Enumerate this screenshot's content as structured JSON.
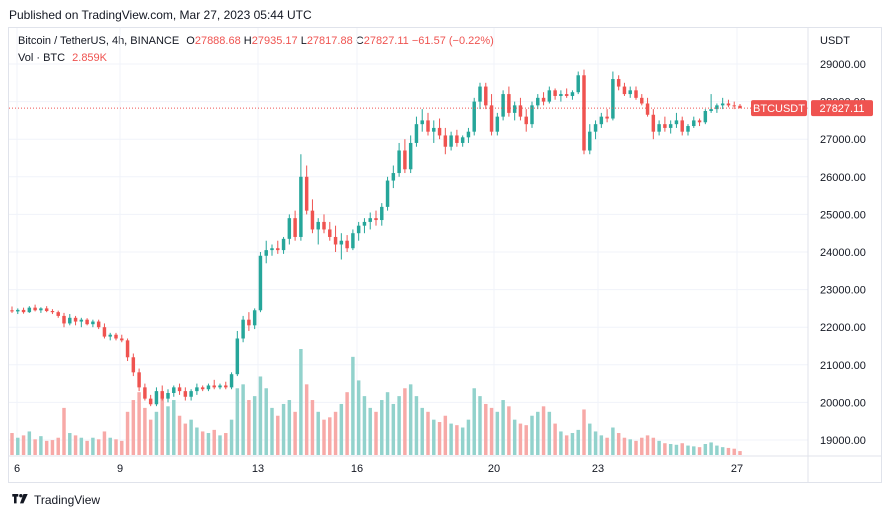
{
  "header": {
    "published": "Published on TradingView.com, Mar 27, 2023 05:44 UTC"
  },
  "legend": {
    "symbol": "Bitcoin / TetherUS, 4h, BINANCE",
    "o_label": "O",
    "o": "27888.68",
    "h_label": "H",
    "h": "27935.17",
    "l_label": "L",
    "l": "27817.88",
    "c_label": "C",
    "c": "27827.11",
    "change": "−61.57 (−0.22%)",
    "vol_label": "Vol · BTC",
    "vol": "2.859K"
  },
  "price_axis": {
    "currency": "USDT",
    "ticker": "BTCUSDT",
    "last_price": "27827.11",
    "ticks": [
      "29000.00",
      "28000.00",
      "27000.00",
      "26000.00",
      "25000.00",
      "24000.00",
      "23000.00",
      "22000.00",
      "21000.00",
      "20000.00",
      "19000.00"
    ]
  },
  "footer": {
    "brand": "TradingView",
    "logo_icon": "tradingview-logo-icon"
  },
  "colors": {
    "up": "#26a69a",
    "down": "#ef5350",
    "up_vol": "#92d2cc",
    "down_vol": "#f7a9a7",
    "grid": "#f0f3fa"
  },
  "chart_data": {
    "type": "candlestick",
    "interval": "4h",
    "x_ticks": [
      "6",
      "9",
      "13",
      "16",
      "20",
      "23",
      "27"
    ],
    "ylim": [
      18700,
      29300
    ],
    "grid": true,
    "last_price": 27827.11,
    "volume_scale_note": "relative",
    "candles": [
      {
        "o": 22450,
        "h": 22550,
        "l": 22380,
        "c": 22420,
        "v": 0.28
      },
      {
        "o": 22420,
        "h": 22500,
        "l": 22350,
        "c": 22460,
        "v": 0.22
      },
      {
        "o": 22460,
        "h": 22520,
        "l": 22360,
        "c": 22400,
        "v": 0.25
      },
      {
        "o": 22400,
        "h": 22560,
        "l": 22380,
        "c": 22520,
        "v": 0.3
      },
      {
        "o": 22520,
        "h": 22600,
        "l": 22420,
        "c": 22450,
        "v": 0.2
      },
      {
        "o": 22450,
        "h": 22530,
        "l": 22380,
        "c": 22500,
        "v": 0.24
      },
      {
        "o": 22500,
        "h": 22560,
        "l": 22400,
        "c": 22430,
        "v": 0.18
      },
      {
        "o": 22430,
        "h": 22480,
        "l": 22350,
        "c": 22400,
        "v": 0.19
      },
      {
        "o": 22400,
        "h": 22440,
        "l": 22250,
        "c": 22300,
        "v": 0.22
      },
      {
        "o": 22300,
        "h": 22380,
        "l": 22000,
        "c": 22100,
        "v": 0.6
      },
      {
        "o": 22100,
        "h": 22350,
        "l": 22050,
        "c": 22250,
        "v": 0.28
      },
      {
        "o": 22250,
        "h": 22300,
        "l": 22050,
        "c": 22150,
        "v": 0.25
      },
      {
        "o": 22150,
        "h": 22250,
        "l": 22000,
        "c": 22200,
        "v": 0.22
      },
      {
        "o": 22200,
        "h": 22240,
        "l": 22050,
        "c": 22080,
        "v": 0.18
      },
      {
        "o": 22080,
        "h": 22200,
        "l": 22000,
        "c": 22150,
        "v": 0.22
      },
      {
        "o": 22150,
        "h": 22200,
        "l": 21950,
        "c": 22000,
        "v": 0.2
      },
      {
        "o": 22000,
        "h": 22100,
        "l": 21700,
        "c": 21750,
        "v": 0.3
      },
      {
        "o": 21750,
        "h": 21850,
        "l": 21650,
        "c": 21800,
        "v": 0.22
      },
      {
        "o": 21800,
        "h": 21850,
        "l": 21650,
        "c": 21700,
        "v": 0.2
      },
      {
        "o": 21700,
        "h": 21800,
        "l": 21600,
        "c": 21650,
        "v": 0.18
      },
      {
        "o": 21650,
        "h": 21700,
        "l": 21100,
        "c": 21200,
        "v": 0.55
      },
      {
        "o": 21200,
        "h": 21300,
        "l": 20700,
        "c": 20800,
        "v": 0.7
      },
      {
        "o": 20800,
        "h": 20900,
        "l": 20300,
        "c": 20400,
        "v": 0.8
      },
      {
        "o": 20400,
        "h": 20500,
        "l": 20050,
        "c": 20100,
        "v": 0.6
      },
      {
        "o": 20100,
        "h": 20200,
        "l": 19900,
        "c": 19950,
        "v": 0.45
      },
      {
        "o": 19950,
        "h": 20400,
        "l": 19900,
        "c": 20300,
        "v": 0.55
      },
      {
        "o": 20300,
        "h": 20450,
        "l": 20050,
        "c": 20100,
        "v": 0.75
      },
      {
        "o": 20100,
        "h": 20350,
        "l": 20000,
        "c": 20250,
        "v": 0.62
      },
      {
        "o": 20250,
        "h": 20450,
        "l": 20150,
        "c": 20400,
        "v": 0.7
      },
      {
        "o": 20400,
        "h": 20500,
        "l": 20200,
        "c": 20300,
        "v": 0.5
      },
      {
        "o": 20300,
        "h": 20400,
        "l": 20050,
        "c": 20150,
        "v": 0.4
      },
      {
        "o": 20150,
        "h": 20350,
        "l": 20050,
        "c": 20300,
        "v": 0.45
      },
      {
        "o": 20300,
        "h": 20500,
        "l": 20200,
        "c": 20400,
        "v": 0.35
      },
      {
        "o": 20400,
        "h": 20450,
        "l": 20300,
        "c": 20350,
        "v": 0.3
      },
      {
        "o": 20350,
        "h": 20500,
        "l": 20300,
        "c": 20450,
        "v": 0.28
      },
      {
        "o": 20450,
        "h": 20600,
        "l": 20350,
        "c": 20400,
        "v": 0.32
      },
      {
        "o": 20400,
        "h": 20500,
        "l": 20350,
        "c": 20450,
        "v": 0.25
      },
      {
        "o": 20450,
        "h": 20550,
        "l": 20350,
        "c": 20400,
        "v": 0.28
      },
      {
        "o": 20400,
        "h": 20800,
        "l": 20350,
        "c": 20750,
        "v": 0.45
      },
      {
        "o": 20750,
        "h": 21900,
        "l": 20700,
        "c": 21700,
        "v": 0.85
      },
      {
        "o": 21700,
        "h": 22300,
        "l": 21600,
        "c": 22200,
        "v": 0.9
      },
      {
        "o": 22200,
        "h": 22400,
        "l": 21900,
        "c": 22050,
        "v": 0.7
      },
      {
        "o": 22050,
        "h": 22500,
        "l": 21950,
        "c": 22450,
        "v": 0.75
      },
      {
        "o": 22450,
        "h": 24000,
        "l": 22400,
        "c": 23900,
        "v": 1.0
      },
      {
        "o": 23900,
        "h": 24300,
        "l": 23700,
        "c": 24050,
        "v": 0.85
      },
      {
        "o": 24050,
        "h": 24200,
        "l": 23900,
        "c": 24100,
        "v": 0.6
      },
      {
        "o": 24100,
        "h": 24300,
        "l": 23950,
        "c": 24050,
        "v": 0.5
      },
      {
        "o": 24050,
        "h": 24400,
        "l": 23950,
        "c": 24350,
        "v": 0.65
      },
      {
        "o": 24350,
        "h": 25000,
        "l": 24200,
        "c": 24900,
        "v": 0.7
      },
      {
        "o": 24900,
        "h": 25100,
        "l": 24300,
        "c": 24400,
        "v": 0.55
      },
      {
        "o": 24400,
        "h": 26600,
        "l": 24300,
        "c": 26000,
        "v": 1.35
      },
      {
        "o": 26000,
        "h": 26300,
        "l": 25000,
        "c": 25100,
        "v": 0.9
      },
      {
        "o": 25100,
        "h": 25400,
        "l": 24500,
        "c": 24600,
        "v": 0.7
      },
      {
        "o": 24600,
        "h": 24900,
        "l": 24200,
        "c": 24800,
        "v": 0.55
      },
      {
        "o": 24800,
        "h": 25000,
        "l": 24500,
        "c": 24600,
        "v": 0.45
      },
      {
        "o": 24600,
        "h": 24800,
        "l": 24300,
        "c": 24400,
        "v": 0.48
      },
      {
        "o": 24400,
        "h": 24700,
        "l": 24000,
        "c": 24200,
        "v": 0.55
      },
      {
        "o": 24200,
        "h": 24500,
        "l": 23800,
        "c": 24300,
        "v": 0.65
      },
      {
        "o": 24300,
        "h": 24450,
        "l": 24000,
        "c": 24100,
        "v": 0.8
      },
      {
        "o": 24100,
        "h": 24600,
        "l": 24050,
        "c": 24500,
        "v": 1.25
      },
      {
        "o": 24500,
        "h": 24800,
        "l": 24300,
        "c": 24700,
        "v": 0.95
      },
      {
        "o": 24700,
        "h": 24900,
        "l": 24500,
        "c": 24800,
        "v": 0.75
      },
      {
        "o": 24800,
        "h": 25050,
        "l": 24600,
        "c": 24900,
        "v": 0.6
      },
      {
        "o": 24900,
        "h": 25100,
        "l": 24700,
        "c": 24850,
        "v": 0.55
      },
      {
        "o": 24850,
        "h": 25300,
        "l": 24700,
        "c": 25200,
        "v": 0.7
      },
      {
        "o": 25200,
        "h": 26000,
        "l": 25100,
        "c": 25900,
        "v": 0.8
      },
      {
        "o": 25900,
        "h": 26300,
        "l": 25700,
        "c": 26100,
        "v": 0.65
      },
      {
        "o": 26100,
        "h": 26900,
        "l": 26000,
        "c": 26700,
        "v": 0.75
      },
      {
        "o": 26700,
        "h": 27000,
        "l": 26100,
        "c": 26200,
        "v": 0.85
      },
      {
        "o": 26200,
        "h": 27100,
        "l": 26100,
        "c": 26900,
        "v": 0.9
      },
      {
        "o": 26900,
        "h": 27600,
        "l": 26800,
        "c": 27400,
        "v": 0.75
      },
      {
        "o": 27400,
        "h": 27800,
        "l": 27200,
        "c": 27500,
        "v": 0.6
      },
      {
        "o": 27500,
        "h": 27700,
        "l": 27100,
        "c": 27200,
        "v": 0.55
      },
      {
        "o": 27200,
        "h": 27500,
        "l": 26900,
        "c": 27300,
        "v": 0.45
      },
      {
        "o": 27300,
        "h": 27550,
        "l": 27000,
        "c": 27100,
        "v": 0.42
      },
      {
        "o": 27100,
        "h": 27300,
        "l": 26600,
        "c": 26800,
        "v": 0.5
      },
      {
        "o": 26800,
        "h": 27200,
        "l": 26700,
        "c": 27100,
        "v": 0.4
      },
      {
        "o": 27100,
        "h": 27250,
        "l": 26800,
        "c": 26900,
        "v": 0.38
      },
      {
        "o": 26900,
        "h": 27100,
        "l": 26800,
        "c": 27050,
        "v": 0.35
      },
      {
        "o": 27050,
        "h": 27300,
        "l": 26900,
        "c": 27200,
        "v": 0.45
      },
      {
        "o": 27200,
        "h": 28100,
        "l": 27100,
        "c": 28000,
        "v": 0.85
      },
      {
        "o": 28000,
        "h": 28500,
        "l": 27800,
        "c": 28400,
        "v": 0.75
      },
      {
        "o": 28400,
        "h": 28500,
        "l": 27800,
        "c": 27900,
        "v": 0.65
      },
      {
        "o": 27900,
        "h": 28200,
        "l": 27100,
        "c": 27200,
        "v": 0.6
      },
      {
        "o": 27200,
        "h": 27700,
        "l": 27100,
        "c": 27600,
        "v": 0.55
      },
      {
        "o": 27600,
        "h": 28300,
        "l": 27500,
        "c": 28200,
        "v": 0.7
      },
      {
        "o": 28200,
        "h": 28400,
        "l": 27600,
        "c": 27700,
        "v": 0.62
      },
      {
        "o": 27700,
        "h": 28000,
        "l": 27500,
        "c": 27900,
        "v": 0.45
      },
      {
        "o": 27900,
        "h": 28100,
        "l": 27500,
        "c": 27600,
        "v": 0.4
      },
      {
        "o": 27600,
        "h": 27800,
        "l": 27200,
        "c": 27400,
        "v": 0.38
      },
      {
        "o": 27400,
        "h": 28000,
        "l": 27300,
        "c": 27900,
        "v": 0.5
      },
      {
        "o": 27900,
        "h": 28200,
        "l": 27800,
        "c": 28100,
        "v": 0.55
      },
      {
        "o": 28100,
        "h": 28250,
        "l": 27900,
        "c": 28000,
        "v": 0.62
      },
      {
        "o": 28000,
        "h": 28400,
        "l": 27950,
        "c": 28300,
        "v": 0.55
      },
      {
        "o": 28300,
        "h": 28350,
        "l": 28050,
        "c": 28150,
        "v": 0.4
      },
      {
        "o": 28150,
        "h": 28300,
        "l": 28000,
        "c": 28200,
        "v": 0.3
      },
      {
        "o": 28200,
        "h": 28350,
        "l": 28100,
        "c": 28150,
        "v": 0.25
      },
      {
        "o": 28150,
        "h": 28300,
        "l": 28050,
        "c": 28250,
        "v": 0.28
      },
      {
        "o": 28250,
        "h": 28800,
        "l": 28200,
        "c": 28700,
        "v": 0.32
      },
      {
        "o": 28700,
        "h": 28850,
        "l": 26600,
        "c": 26700,
        "v": 0.58
      },
      {
        "o": 26700,
        "h": 27400,
        "l": 26600,
        "c": 27200,
        "v": 0.4
      },
      {
        "o": 27200,
        "h": 27500,
        "l": 27000,
        "c": 27400,
        "v": 0.3
      },
      {
        "o": 27400,
        "h": 27700,
        "l": 27300,
        "c": 27600,
        "v": 0.25
      },
      {
        "o": 27600,
        "h": 27800,
        "l": 27450,
        "c": 27550,
        "v": 0.22
      },
      {
        "o": 27550,
        "h": 28800,
        "l": 27500,
        "c": 28600,
        "v": 0.35
      },
      {
        "o": 28600,
        "h": 28700,
        "l": 28300,
        "c": 28400,
        "v": 0.28
      },
      {
        "o": 28400,
        "h": 28500,
        "l": 28150,
        "c": 28200,
        "v": 0.22
      },
      {
        "o": 28200,
        "h": 28400,
        "l": 28100,
        "c": 28300,
        "v": 0.2
      },
      {
        "o": 28300,
        "h": 28400,
        "l": 28050,
        "c": 28100,
        "v": 0.18
      },
      {
        "o": 28100,
        "h": 28200,
        "l": 27900,
        "c": 27950,
        "v": 0.22
      },
      {
        "o": 27950,
        "h": 28100,
        "l": 27600,
        "c": 27650,
        "v": 0.25
      },
      {
        "o": 27650,
        "h": 27800,
        "l": 27000,
        "c": 27200,
        "v": 0.22
      },
      {
        "o": 27200,
        "h": 27500,
        "l": 27100,
        "c": 27400,
        "v": 0.18
      },
      {
        "o": 27400,
        "h": 27600,
        "l": 27200,
        "c": 27300,
        "v": 0.15
      },
      {
        "o": 27300,
        "h": 27500,
        "l": 27150,
        "c": 27400,
        "v": 0.14
      },
      {
        "o": 27400,
        "h": 27700,
        "l": 27300,
        "c": 27500,
        "v": 0.13
      },
      {
        "o": 27500,
        "h": 27600,
        "l": 27100,
        "c": 27200,
        "v": 0.15
      },
      {
        "o": 27200,
        "h": 27400,
        "l": 27100,
        "c": 27350,
        "v": 0.12
      },
      {
        "o": 27350,
        "h": 27600,
        "l": 27300,
        "c": 27500,
        "v": 0.11
      },
      {
        "o": 27500,
        "h": 27550,
        "l": 27350,
        "c": 27450,
        "v": 0.1
      },
      {
        "o": 27450,
        "h": 27800,
        "l": 27400,
        "c": 27750,
        "v": 0.14
      },
      {
        "o": 27750,
        "h": 28200,
        "l": 27700,
        "c": 27800,
        "v": 0.16
      },
      {
        "o": 27800,
        "h": 27950,
        "l": 27700,
        "c": 27900,
        "v": 0.12
      },
      {
        "o": 27900,
        "h": 28100,
        "l": 27800,
        "c": 27950,
        "v": 0.1
      },
      {
        "o": 27950,
        "h": 28050,
        "l": 27850,
        "c": 27900,
        "v": 0.09
      },
      {
        "o": 27900,
        "h": 28000,
        "l": 27800,
        "c": 27888,
        "v": 0.08
      },
      {
        "o": 27888.68,
        "h": 27935.17,
        "l": 27817.88,
        "c": 27827.11,
        "v": 0.05
      }
    ]
  }
}
